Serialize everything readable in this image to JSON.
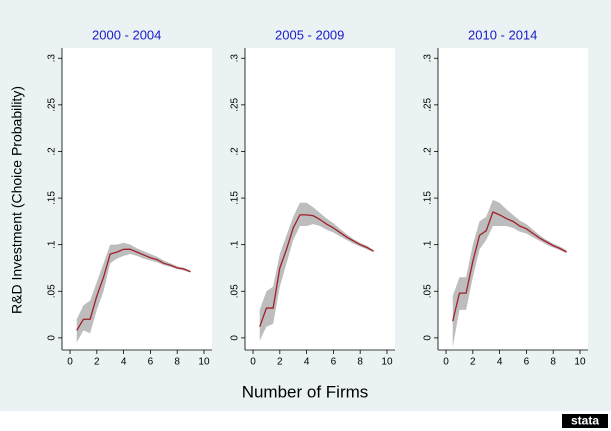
{
  "chart_data": {
    "type": "line",
    "ylabel": "R&D Investment (Choice Probability)",
    "xlabel": "Number of Firms",
    "logo": "stata",
    "xlim": [
      -0.6,
      10.6
    ],
    "ylim": [
      -0.013,
      0.311
    ],
    "xticks": [
      0,
      2,
      4,
      6,
      8,
      10
    ],
    "yticks": [
      0,
      {
        "value": 0.05,
        "label": ".05"
      },
      {
        "value": 0.1,
        "label": ".1"
      },
      {
        "value": 0.15,
        "label": ".15"
      },
      {
        "value": 0.2,
        "label": ".2"
      },
      {
        "value": 0.25,
        "label": ".25"
      },
      {
        "value": 0.3,
        "label": ".3"
      }
    ],
    "line_color": "#a0202a",
    "band_color": "#bdbdbd",
    "panels": [
      {
        "title": "2000 - 2004",
        "x": [
          0.5,
          1,
          1.5,
          2,
          2.5,
          3,
          3.5,
          4,
          4.5,
          5,
          5.5,
          6,
          6.5,
          7,
          7.5,
          8,
          8.5,
          9
        ],
        "values": [
          0.008,
          0.02,
          0.02,
          0.045,
          0.065,
          0.09,
          0.092,
          0.095,
          0.095,
          0.092,
          0.089,
          0.086,
          0.084,
          0.08,
          0.078,
          0.075,
          0.074,
          0.071
        ],
        "lower": [
          -0.005,
          0.008,
          0.005,
          0.03,
          0.05,
          0.08,
          0.085,
          0.088,
          0.09,
          0.088,
          0.085,
          0.083,
          0.081,
          0.078,
          0.076,
          0.074,
          0.072,
          0.07
        ],
        "upper": [
          0.02,
          0.035,
          0.04,
          0.06,
          0.08,
          0.1,
          0.1,
          0.102,
          0.1,
          0.096,
          0.093,
          0.09,
          0.087,
          0.083,
          0.08,
          0.077,
          0.075,
          0.072
        ]
      },
      {
        "title": "2005 - 2009",
        "x": [
          0.5,
          1,
          1.5,
          2,
          2.5,
          3,
          3.5,
          4,
          4.5,
          5,
          5.5,
          6,
          6.5,
          7,
          7.5,
          8,
          8.5,
          9
        ],
        "values": [
          0.012,
          0.032,
          0.032,
          0.075,
          0.095,
          0.118,
          0.132,
          0.132,
          0.131,
          0.127,
          0.122,
          0.118,
          0.113,
          0.108,
          0.104,
          0.1,
          0.097,
          0.093
        ],
        "lower": [
          -0.003,
          0.012,
          0.015,
          0.055,
          0.08,
          0.105,
          0.12,
          0.12,
          0.122,
          0.12,
          0.116,
          0.113,
          0.109,
          0.105,
          0.101,
          0.098,
          0.095,
          0.092
        ],
        "upper": [
          0.03,
          0.05,
          0.055,
          0.09,
          0.11,
          0.13,
          0.145,
          0.145,
          0.14,
          0.134,
          0.128,
          0.123,
          0.117,
          0.111,
          0.106,
          0.102,
          0.099,
          0.094
        ]
      },
      {
        "title": "2010 - 2014",
        "x": [
          0.5,
          1,
          1.5,
          2,
          2.5,
          3,
          3.5,
          4,
          4.5,
          5,
          5.5,
          6,
          6.5,
          7,
          7.5,
          8,
          8.5,
          9
        ],
        "values": [
          0.018,
          0.048,
          0.048,
          0.082,
          0.11,
          0.115,
          0.135,
          0.132,
          0.128,
          0.125,
          0.12,
          0.117,
          0.112,
          0.107,
          0.103,
          0.099,
          0.096,
          0.092
        ],
        "lower": [
          -0.01,
          0.03,
          0.03,
          0.065,
          0.095,
          0.105,
          0.12,
          0.12,
          0.12,
          0.118,
          0.114,
          0.112,
          0.108,
          0.104,
          0.1,
          0.097,
          0.094,
          0.091
        ],
        "upper": [
          0.045,
          0.065,
          0.065,
          0.1,
          0.125,
          0.13,
          0.148,
          0.145,
          0.138,
          0.132,
          0.126,
          0.122,
          0.116,
          0.11,
          0.105,
          0.101,
          0.098,
          0.094
        ]
      }
    ]
  }
}
